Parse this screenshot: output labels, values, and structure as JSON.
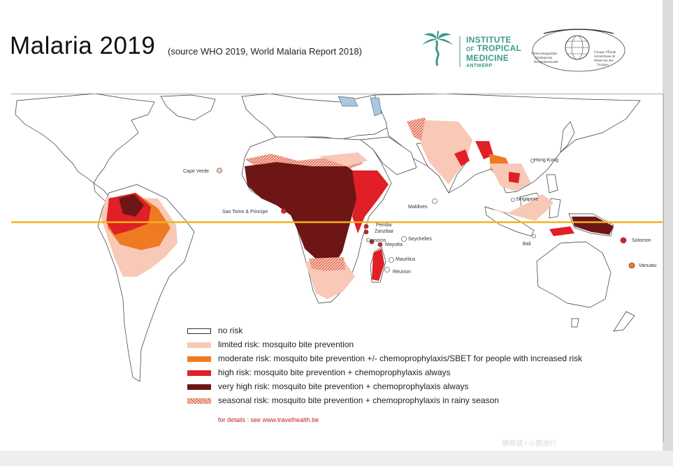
{
  "header": {
    "title": "Malaria 2019",
    "subtitle": "(source WHO 2019, World Malaria Report 2018)"
  },
  "logo_itm": {
    "line1": "INSTITUTE",
    "line2_small": "OF",
    "line2": "TROPICAL",
    "line3": "MEDICINE",
    "line4": "ANTWERP"
  },
  "logo_gemv": {
    "left_text": "Wetenschappelijke Studiegroep Reisgeneeskunde",
    "right_text": "Groupe d'Étude Scientifique de Médecine des Voyages"
  },
  "map_labels": {
    "cape_verde": "Cape Verde",
    "sao_tome": "Sao Tome & Principe",
    "maldives": "Maldives",
    "pemba": "Pemba",
    "zanzibar": "Zanzibar",
    "comoros": "Comoros",
    "seychelles": "Seychelles",
    "mayotta": "Mayotta",
    "mauritius": "Mauritius",
    "reunion": "Réunion",
    "hong_kong": "Hong Kong",
    "singapore": "Singapore",
    "bali": "Bali",
    "solomon": "Solomon",
    "vanuatu": "Vanuatu"
  },
  "colors": {
    "no_risk": "#ffffff",
    "limited": "#f7c9b6",
    "moderate": "#ee7a22",
    "high": "#e01f26",
    "very_high": "#6e1616",
    "seasonal": "#e36a5a",
    "equator": "#f2b21c",
    "water": "#a7c8e2"
  },
  "legend": {
    "items": [
      {
        "key": "no_risk",
        "label": "no risk"
      },
      {
        "key": "limited",
        "label": "limited risk: mosquito bite prevention"
      },
      {
        "key": "moderate",
        "label": "moderate risk: mosquito bite prevention +/- chemoprophylaxis/SBET for people with increased risk"
      },
      {
        "key": "high",
        "label": "high risk: mosquito bite prevention + chemoprophylaxis always"
      },
      {
        "key": "very_high",
        "label": "very high risk: mosquito bite prevention + chemoprophylaxis always"
      },
      {
        "key": "seasonal",
        "label": "seasonal risk: mosquito bite prevention + chemoprophylaxis in rainy season"
      }
    ],
    "details": "for details : see www.travelhealth.be"
  },
  "watermark": "頭條號 / 小鹿旅行"
}
